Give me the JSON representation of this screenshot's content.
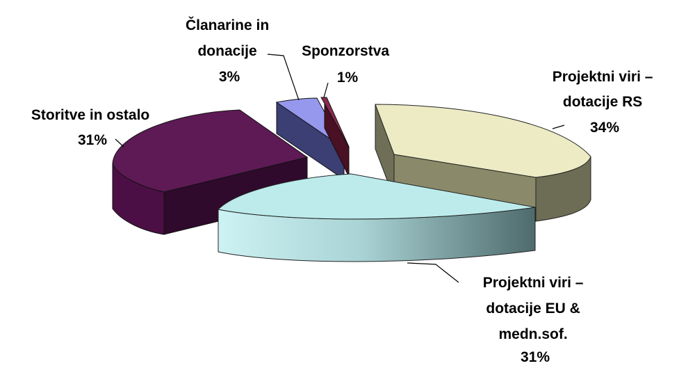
{
  "chart_data": {
    "type": "pie",
    "style": "3d-exploded",
    "legend": "none",
    "slices": [
      {
        "label_lines": [
          "Projektni viri –",
          "dotacije RS"
        ],
        "percent_text": "34%",
        "value": 34,
        "color": "#ecebc4",
        "side_color": "#77775e"
      },
      {
        "label_lines": [
          "Projektni viri –",
          "dotacije EU &",
          "medn.sof."
        ],
        "percent_text": "31%",
        "value": 31,
        "color": "#bdebec",
        "side_color": "#4f6d6f"
      },
      {
        "label_lines": [
          "Storitve in ostalo"
        ],
        "percent_text": "31%",
        "value": 31,
        "color": "#5e1a55",
        "side_color": "#3a0a35"
      },
      {
        "label_lines": [
          "Članarine in",
          "donacije"
        ],
        "percent_text": "3%",
        "value": 3,
        "color": "#9698ee",
        "side_color": "#3c3f74"
      },
      {
        "label_lines": [
          "Sponzorstva"
        ],
        "percent_text": "1%",
        "value": 1,
        "color": "#8a2a50",
        "side_color": "#4a1024"
      }
    ]
  }
}
